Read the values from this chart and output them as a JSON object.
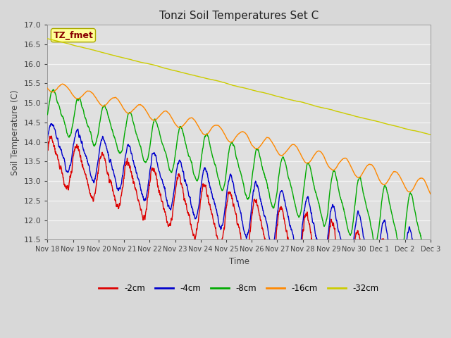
{
  "title": "Tonzi Soil Temperatures Set C",
  "xlabel": "Time",
  "ylabel": "Soil Temperature (C)",
  "ylim": [
    11.5,
    17.0
  ],
  "annotation_label": "TZ_fmet",
  "annotation_bbox_color": "#ffff99",
  "annotation_text_color": "#880000",
  "legend_labels": [
    "-2cm",
    "-4cm",
    "-8cm",
    "-16cm",
    "-32cm"
  ],
  "legend_colors": [
    "#dd0000",
    "#0000cc",
    "#00aa00",
    "#ff8800",
    "#cccc00"
  ],
  "line_width": 1.0,
  "bg_color": "#d8d8d8",
  "plot_bg_color": "#e0e0e0",
  "grid_color": "#f5f5f5",
  "xtick_labels": [
    "Nov 18",
    "Nov 19",
    "Nov 20",
    "Nov 21",
    "Nov 22",
    "Nov 23",
    "Nov 24",
    "Nov 25",
    "Nov 26",
    "Nov 27",
    "Nov 28",
    "Nov 29",
    "Nov 30",
    "Dec 1",
    "Dec 2",
    "Dec 3"
  ],
  "num_points": 2160
}
